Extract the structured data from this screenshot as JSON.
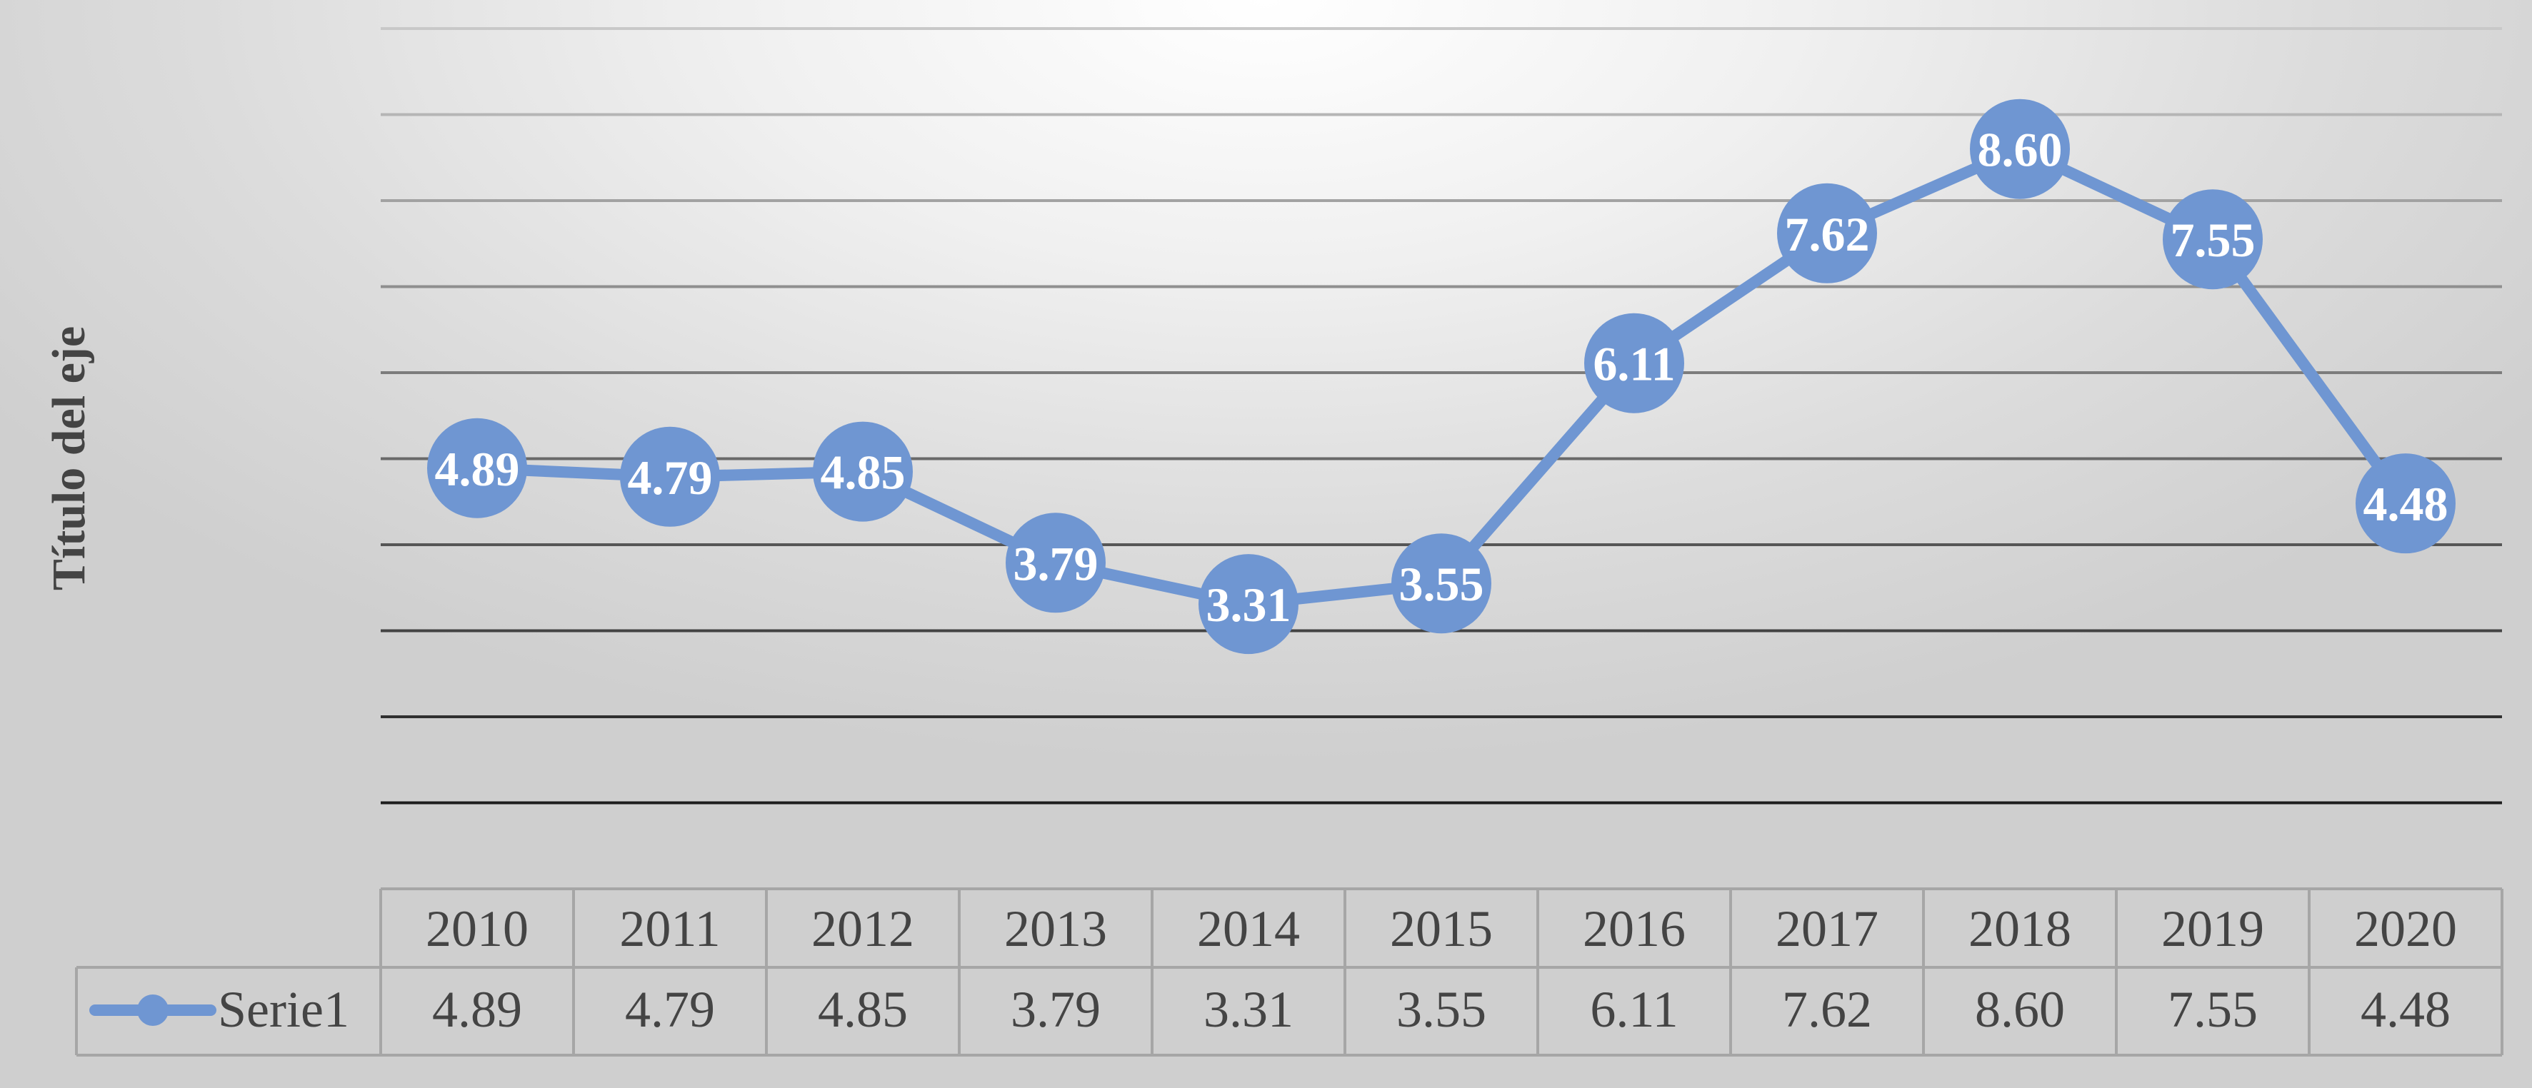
{
  "chart_data": {
    "type": "line",
    "title": "",
    "xlabel": "",
    "ylabel": "Título del eje",
    "categories": [
      "2010",
      "2011",
      "2012",
      "2013",
      "2014",
      "2015",
      "2016",
      "2017",
      "2018",
      "2019",
      "2020"
    ],
    "series": [
      {
        "name": "Serie1",
        "values": [
          4.89,
          4.79,
          4.85,
          3.79,
          3.31,
          3.55,
          6.11,
          7.62,
          8.6,
          7.55,
          4.48
        ],
        "labels": [
          "4.89",
          "4.79",
          "4.85",
          "3.79",
          "3.31",
          "3.55",
          "6.11",
          "7.62",
          "8.60",
          "7.55",
          "4.48"
        ],
        "color": "#6f96d2"
      }
    ],
    "ylim": [
      0,
      10
    ],
    "grid": true,
    "data_table": true,
    "legend": "data-table-left"
  }
}
